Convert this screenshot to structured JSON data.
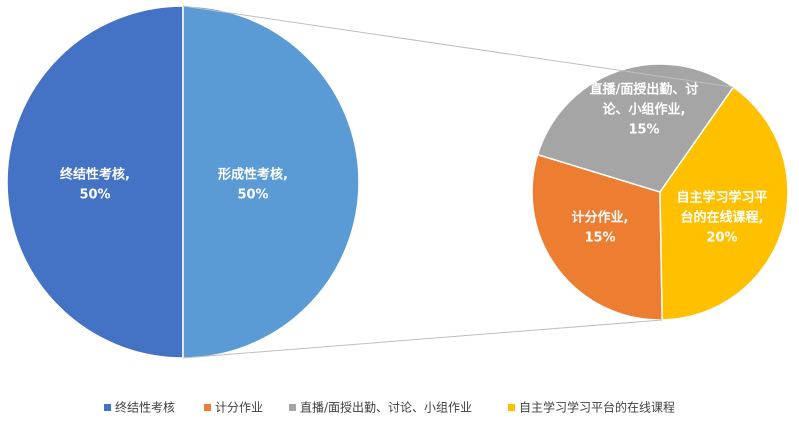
{
  "chart_data": {
    "type": "pie-of-pie",
    "categories": [
      "终结性考核",
      "计分作业",
      "直播/面授出勤、讨论、小组作业",
      "自主学习学习平台的在线课程"
    ],
    "values": [
      50,
      15,
      15,
      20
    ],
    "value_labels": [
      "50%",
      "15%",
      "15%",
      "20%"
    ],
    "data_labels": [
      [
        "终结性考核,"
      ],
      [
        "计分作业,"
      ],
      [
        "直播/面授出勤、讨",
        "论、小组作业,"
      ],
      [
        "自主学习学习平",
        "台的在线课程,"
      ]
    ],
    "colors": [
      "#4472c4",
      "#ed7d31",
      "#a5a5a5",
      "#ffc000"
    ],
    "other": {
      "label": [
        "形成性考核,"
      ],
      "value": 50,
      "value_label": "50%",
      "color": "#5b9bd5"
    },
    "legend": "bottom"
  }
}
